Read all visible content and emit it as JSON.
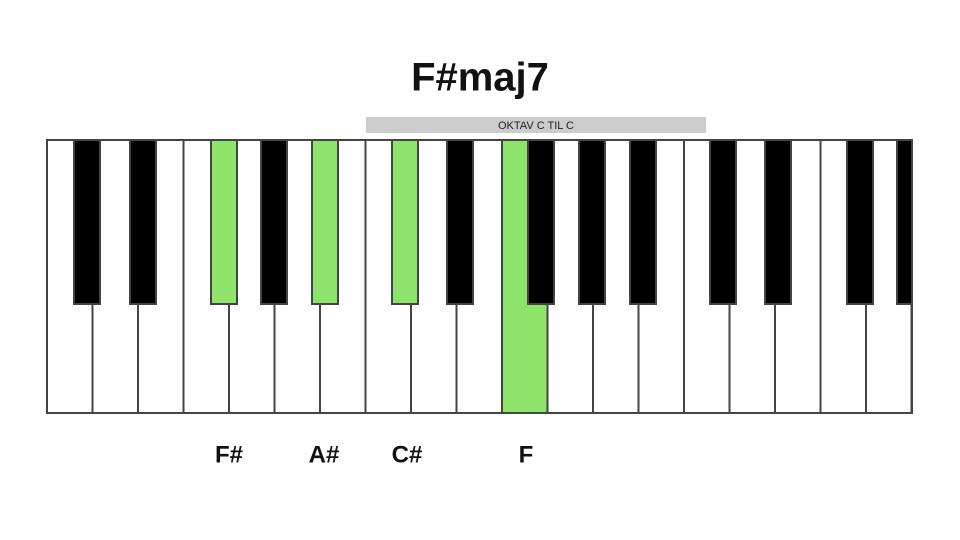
{
  "title": "F#maj7",
  "octave_label": "OKTAV C TIL C",
  "notes": [
    "F#",
    "A#",
    "C#",
    "F"
  ]
}
